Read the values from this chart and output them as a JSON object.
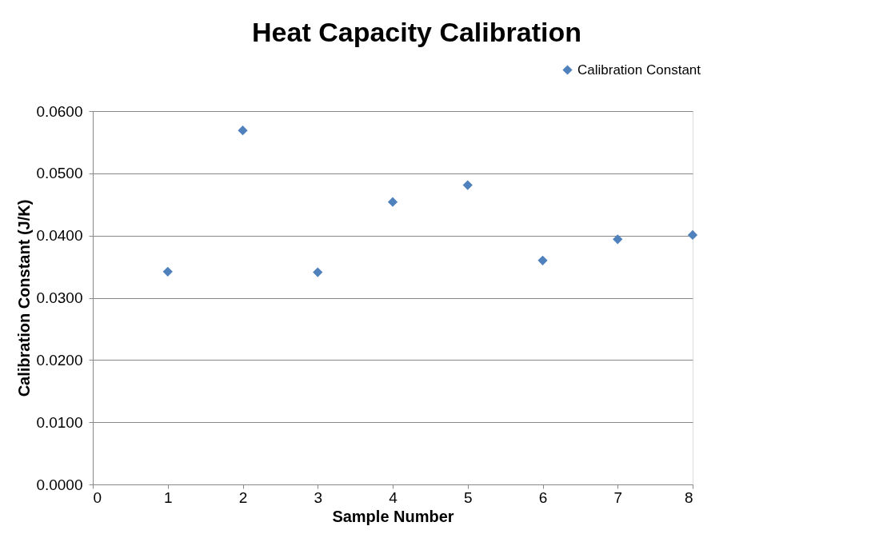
{
  "chart_data": {
    "type": "scatter",
    "title": "Heat Capacity Calibration",
    "xlabel": "Sample Number",
    "ylabel": "Calibration Constant (J/K)",
    "x": [
      1,
      2,
      3,
      4,
      5,
      6,
      7,
      8
    ],
    "series": [
      {
        "name": "Calibration Constant",
        "color": "#4f81bd",
        "values": [
          0.0342,
          0.0569,
          0.0341,
          0.0454,
          0.0481,
          0.036,
          0.0394,
          0.0401
        ]
      }
    ],
    "xlim": [
      0,
      8
    ],
    "xticks": [
      0,
      1,
      2,
      3,
      4,
      5,
      6,
      7,
      8
    ],
    "ylim": [
      0,
      0.06
    ],
    "yticks": [
      {
        "value": 0,
        "label": "0.0000"
      },
      {
        "value": 0.01,
        "label": "0.0100"
      },
      {
        "value": 0.02,
        "label": "0.0200"
      },
      {
        "value": 0.03,
        "label": "0.0300"
      },
      {
        "value": 0.04,
        "label": "0.0400"
      },
      {
        "value": 0.05,
        "label": "0.0500"
      },
      {
        "value": 0.06,
        "label": "0.0600"
      }
    ],
    "grid": "y",
    "legend": "top right",
    "marker": "diamond"
  }
}
